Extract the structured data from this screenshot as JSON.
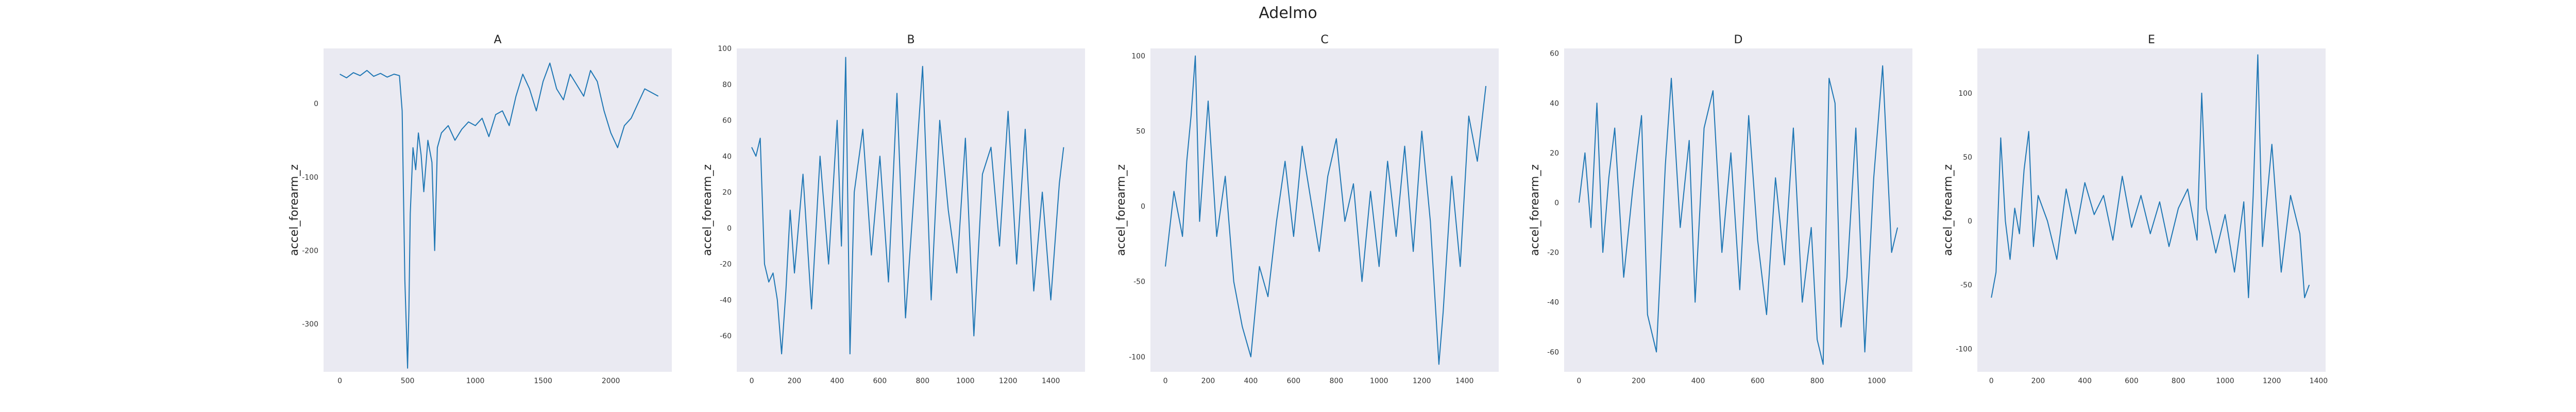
{
  "figure": {
    "title": "Adelmo"
  },
  "chart_data": [
    {
      "type": "line",
      "title": "A",
      "xlabel": "",
      "ylabel": "accel_forearm_z",
      "xlim": [
        -120,
        2450
      ],
      "ylim": [
        -365,
        75
      ],
      "xticks": [
        0,
        500,
        1000,
        1500,
        2000
      ],
      "yticks": [
        -300,
        -200,
        -100,
        0
      ],
      "grid": false,
      "legend": "none",
      "color": "#1f77b4",
      "series": [
        {
          "x": [
            0,
            50,
            100,
            150,
            200,
            250,
            300,
            350,
            400,
            440,
            460,
            480,
            490,
            500,
            510,
            520,
            540,
            560,
            580,
            600,
            620,
            650,
            680,
            700,
            720,
            750,
            800,
            850,
            900,
            950,
            1000,
            1050,
            1100,
            1150,
            1200,
            1250,
            1300,
            1350,
            1400,
            1450,
            1500,
            1550,
            1600,
            1650,
            1700,
            1750,
            1800,
            1850,
            1900,
            1950,
            2000,
            2050,
            2100,
            2150,
            2200,
            2250,
            2300,
            2350
          ],
          "y": [
            40,
            35,
            42,
            38,
            45,
            37,
            41,
            36,
            40,
            38,
            -10,
            -240,
            -300,
            -360,
            -280,
            -150,
            -60,
            -90,
            -40,
            -70,
            -120,
            -50,
            -80,
            -200,
            -60,
            -40,
            -30,
            -50,
            -35,
            -25,
            -30,
            -20,
            -45,
            -15,
            -10,
            -30,
            10,
            40,
            20,
            -10,
            30,
            55,
            20,
            5,
            40,
            25,
            10,
            45,
            30,
            -10,
            -40,
            -60,
            -30,
            -20,
            0,
            20,
            15,
            10
          ]
        }
      ]
    },
    {
      "type": "line",
      "title": "B",
      "xlabel": "",
      "ylabel": "accel_forearm_z",
      "xlim": [
        -70,
        1560
      ],
      "ylim": [
        -80,
        100
      ],
      "xticks": [
        0,
        200,
        400,
        600,
        800,
        1000,
        1200,
        1400
      ],
      "yticks": [
        -60,
        -40,
        -20,
        0,
        20,
        40,
        60,
        80,
        100
      ],
      "grid": false,
      "legend": "none",
      "color": "#1f77b4",
      "series": [
        {
          "x": [
            0,
            20,
            40,
            60,
            80,
            100,
            120,
            140,
            160,
            180,
            200,
            240,
            280,
            320,
            360,
            400,
            420,
            440,
            460,
            480,
            520,
            560,
            600,
            640,
            680,
            720,
            760,
            800,
            840,
            880,
            920,
            960,
            1000,
            1040,
            1080,
            1120,
            1160,
            1200,
            1240,
            1280,
            1320,
            1360,
            1400,
            1440,
            1460
          ],
          "y": [
            45,
            40,
            50,
            -20,
            -30,
            -25,
            -40,
            -70,
            -35,
            10,
            -25,
            30,
            -45,
            40,
            -20,
            60,
            -10,
            95,
            -70,
            20,
            55,
            -15,
            40,
            -30,
            75,
            -50,
            20,
            90,
            -40,
            60,
            10,
            -25,
            50,
            -60,
            30,
            45,
            -10,
            65,
            -20,
            55,
            -35,
            20,
            -40,
            25,
            45
          ]
        }
      ]
    },
    {
      "type": "line",
      "title": "C",
      "xlabel": "",
      "ylabel": "accel_forearm_z",
      "xlim": [
        -70,
        1560
      ],
      "ylim": [
        -110,
        105
      ],
      "xticks": [
        0,
        200,
        400,
        600,
        800,
        1000,
        1200,
        1400
      ],
      "yticks": [
        -100,
        -50,
        0,
        50,
        100
      ],
      "grid": false,
      "legend": "none",
      "color": "#1f77b4",
      "series": [
        {
          "x": [
            0,
            40,
            80,
            100,
            120,
            140,
            160,
            200,
            240,
            280,
            320,
            360,
            400,
            440,
            480,
            520,
            560,
            600,
            640,
            680,
            720,
            760,
            800,
            840,
            880,
            920,
            960,
            1000,
            1040,
            1080,
            1120,
            1160,
            1200,
            1240,
            1280,
            1300,
            1340,
            1380,
            1420,
            1460,
            1500
          ],
          "y": [
            -40,
            10,
            -20,
            30,
            60,
            100,
            -10,
            70,
            -20,
            20,
            -50,
            -80,
            -100,
            -40,
            -60,
            -10,
            30,
            -20,
            40,
            5,
            -30,
            20,
            45,
            -10,
            15,
            -50,
            10,
            -40,
            30,
            -20,
            40,
            -30,
            50,
            -10,
            -105,
            -70,
            20,
            -40,
            60,
            30,
            80
          ]
        }
      ]
    },
    {
      "type": "line",
      "title": "D",
      "xlabel": "",
      "ylabel": "accel_forearm_z",
      "xlim": [
        -50,
        1120
      ],
      "ylim": [
        -68,
        62
      ],
      "xticks": [
        0,
        200,
        400,
        600,
        800,
        1000
      ],
      "yticks": [
        -60,
        -40,
        -20,
        0,
        20,
        40,
        60
      ],
      "grid": false,
      "legend": "none",
      "color": "#1f77b4",
      "series": [
        {
          "x": [
            0,
            20,
            40,
            60,
            80,
            100,
            120,
            150,
            180,
            210,
            230,
            260,
            290,
            310,
            340,
            370,
            390,
            420,
            450,
            480,
            510,
            540,
            570,
            600,
            630,
            660,
            690,
            720,
            750,
            780,
            800,
            820,
            840,
            860,
            880,
            900,
            930,
            960,
            990,
            1020,
            1050,
            1070
          ],
          "y": [
            0,
            20,
            -10,
            40,
            -20,
            10,
            30,
            -30,
            5,
            35,
            -45,
            -60,
            15,
            50,
            -10,
            25,
            -40,
            30,
            45,
            -20,
            20,
            -35,
            35,
            -15,
            -45,
            10,
            -25,
            30,
            -40,
            -10,
            -55,
            -65,
            50,
            40,
            -50,
            -30,
            30,
            -60,
            10,
            55,
            -20,
            -10
          ]
        }
      ]
    },
    {
      "type": "line",
      "title": "E",
      "xlabel": "",
      "ylabel": "accel_forearm_z",
      "xlim": [
        -60,
        1430
      ],
      "ylim": [
        -118,
        135
      ],
      "xticks": [
        0,
        200,
        400,
        600,
        800,
        1000,
        1200,
        1400
      ],
      "yticks": [
        -100,
        -50,
        0,
        50,
        100
      ],
      "grid": false,
      "legend": "none",
      "color": "#1f77b4",
      "series": [
        {
          "x": [
            0,
            20,
            40,
            60,
            80,
            100,
            120,
            140,
            160,
            180,
            200,
            240,
            280,
            320,
            360,
            400,
            440,
            480,
            520,
            560,
            600,
            640,
            680,
            720,
            760,
            800,
            840,
            880,
            900,
            920,
            960,
            1000,
            1040,
            1080,
            1100,
            1120,
            1140,
            1160,
            1200,
            1240,
            1280,
            1320,
            1340,
            1360
          ],
          "y": [
            -60,
            -40,
            65,
            0,
            -30,
            10,
            -10,
            40,
            70,
            -20,
            20,
            0,
            -30,
            25,
            -10,
            30,
            5,
            20,
            -15,
            35,
            -5,
            20,
            -10,
            15,
            -20,
            10,
            25,
            -15,
            100,
            10,
            -25,
            5,
            -40,
            15,
            -60,
            20,
            130,
            -20,
            60,
            -40,
            20,
            -10,
            -60,
            -50
          ]
        }
      ]
    }
  ]
}
